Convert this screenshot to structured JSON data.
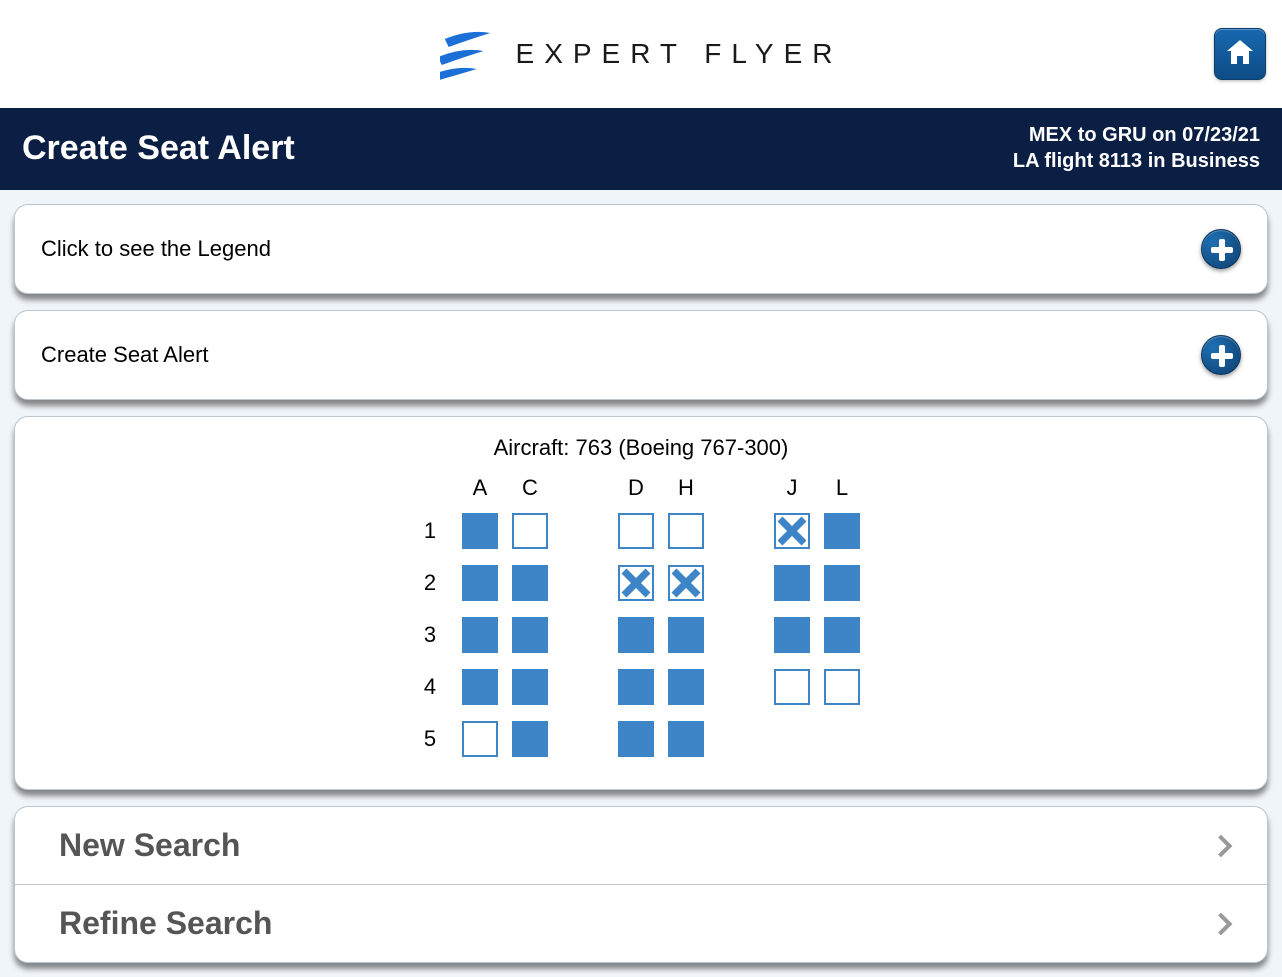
{
  "brand": {
    "name": "EXPERT FLYER",
    "logo_color": "#1d6fd8"
  },
  "header": {
    "title": "Create Seat Alert",
    "route_line": "MEX to GRU on 07/23/21",
    "flight_line": "LA flight 8113 in Business",
    "bar_bg": "#0b1f44"
  },
  "panels": {
    "legend_label": "Click to see the Legend",
    "create_label": "Create Seat Alert"
  },
  "seatmap": {
    "aircraft_label": "Aircraft: 763 (Boeing 767-300)",
    "columns": [
      "A",
      "C",
      "D",
      "H",
      "J",
      "L"
    ],
    "aisle_after": [
      "C",
      "H"
    ],
    "rows": [
      {
        "num": "1",
        "seats": [
          "occupied",
          "available",
          "available",
          "available",
          "blocked",
          "occupied"
        ]
      },
      {
        "num": "2",
        "seats": [
          "occupied",
          "occupied",
          "blocked",
          "blocked",
          "occupied",
          "occupied"
        ]
      },
      {
        "num": "3",
        "seats": [
          "occupied",
          "occupied",
          "occupied",
          "occupied",
          "occupied",
          "occupied"
        ]
      },
      {
        "num": "4",
        "seats": [
          "occupied",
          "occupied",
          "occupied",
          "occupied",
          "available",
          "available"
        ]
      },
      {
        "num": "5",
        "seats": [
          "available",
          "occupied",
          "occupied",
          "occupied",
          "none",
          "none"
        ]
      }
    ],
    "colors": {
      "seat_fill": "#3d85c6",
      "seat_border": "#3d85c6",
      "seat_empty_bg": "#ffffff"
    }
  },
  "nav": {
    "new_search": "New Search",
    "refine_search": "Refine Search"
  }
}
